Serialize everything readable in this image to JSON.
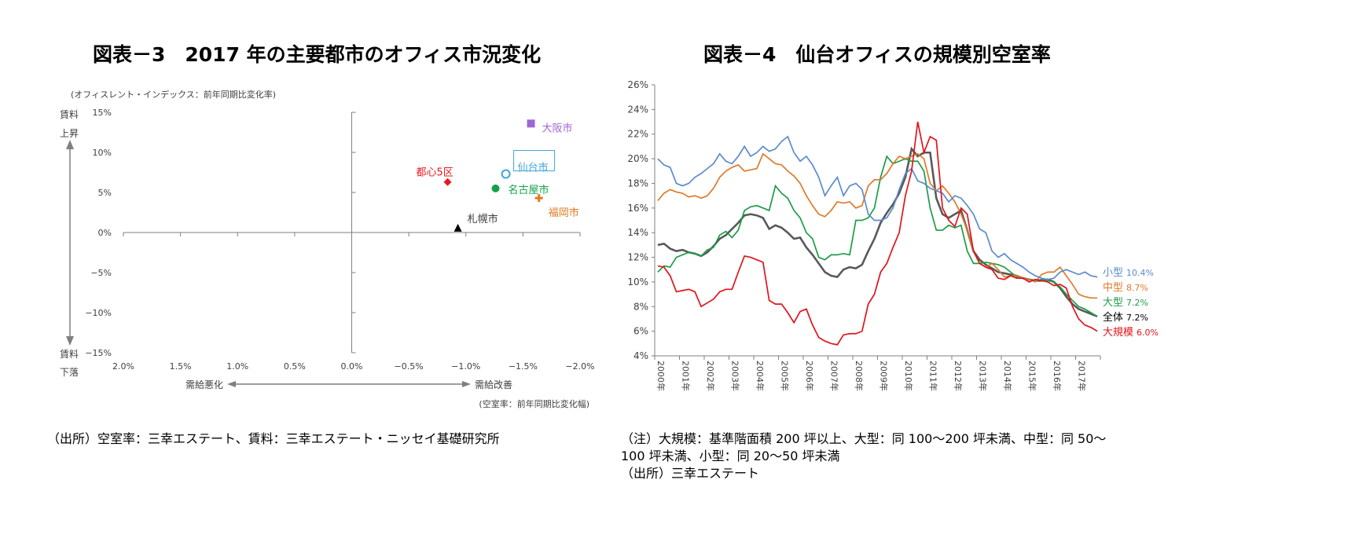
{
  "left": {
    "title": "図表－3　2017 年の主要都市のオフィス市況変化",
    "source": "（出所）空室率：三幸エステート、賃料：三幸エステート・ニッセイ基礎研究所"
  },
  "right": {
    "title": "図表－4　仙台オフィスの規模別空室率",
    "notes": [
      "（注）大規模：基準階面積 200 坪以上、大型：同 100～200 坪未満、中型：同 50～",
      "100 坪未満、小型：同 20～50 坪未満",
      "（出所）三幸エステート"
    ]
  },
  "chart_data": [
    {
      "type": "scatter",
      "ylabel": "(オフィスレント・インデックス：前年同期比変化率)",
      "xlabel": "(空室率：前年同期比変化幅)",
      "y_top_label": [
        "賃料",
        "上昇"
      ],
      "y_bottom_label": [
        "賃料",
        "下落"
      ],
      "x_left_label": "需給悪化",
      "x_right_label": "需給改善",
      "xlim": [
        2.0,
        -2.0
      ],
      "ylim": [
        -15,
        15
      ],
      "x_ticks": [
        "2.0%",
        "1.5%",
        "1.0%",
        "0.5%",
        "0.0%",
        "−0.5%",
        "−1.0%",
        "−1.5%",
        "−2.0%"
      ],
      "y_ticks": [
        "15%",
        "10%",
        "5%",
        "0%",
        "−5%",
        "−10%",
        "−15%"
      ],
      "points": [
        {
          "name": "大阪市",
          "x": -1.57,
          "y": 13.6,
          "marker": "square",
          "color": "#a066d3"
        },
        {
          "name": "仙台市",
          "x": -1.35,
          "y": 7.3,
          "marker": "circle-open",
          "color": "#41a5d8"
        },
        {
          "name": "都心5区",
          "x": -0.84,
          "y": 6.3,
          "marker": "diamond",
          "color": "#e8191e"
        },
        {
          "name": "名古屋市",
          "x": -1.26,
          "y": 5.5,
          "marker": "circle",
          "color": "#17a04a"
        },
        {
          "name": "福岡市",
          "x": -1.64,
          "y": 4.3,
          "marker": "plus",
          "color": "#e07a1f"
        },
        {
          "name": "札幌市",
          "x": -0.93,
          "y": 0.5,
          "marker": "triangle",
          "color": "#000000"
        }
      ]
    },
    {
      "type": "line",
      "ylim": [
        4,
        26
      ],
      "x_start": "2000",
      "x_end": "2017",
      "frequency": "quarterly",
      "y_ticks": [
        "26%",
        "24%",
        "22%",
        "20%",
        "18%",
        "16%",
        "14%",
        "12%",
        "10%",
        "8%",
        "6%",
        "4%"
      ],
      "x_ticks": [
        "2000年",
        "2001年",
        "2002年",
        "2003年",
        "2004年",
        "2005年",
        "2006年",
        "2007年",
        "2008年",
        "2009年",
        "2010年",
        "2011年",
        "2012年",
        "2013年",
        "2014年",
        "2015年",
        "2016年",
        "2017年"
      ],
      "series": [
        {
          "name": "小型",
          "end_label": "10.4%",
          "color": "#5b8ccb",
          "values": [
            20,
            19.5,
            19.3,
            18,
            17.8,
            18,
            18.5,
            18.8,
            19.2,
            19.6,
            20.4,
            19.8,
            19.6,
            20.2,
            21,
            20.2,
            20.5,
            21,
            20.6,
            20.8,
            21.4,
            21.8,
            20.5,
            19.8,
            20.2,
            19.5,
            18.5,
            17,
            17.8,
            18.5,
            17,
            17.8,
            18,
            17.5,
            15.5,
            15,
            15,
            15.2,
            16,
            17.5,
            18.8,
            19.2,
            18.2,
            18,
            17.6,
            17.4,
            17.2,
            16.5,
            17,
            16.8,
            16.2,
            15.5,
            14.3,
            14,
            12.5,
            12,
            12.3,
            11.8,
            11.5,
            11.2,
            10.8,
            10.5,
            10.3,
            10.2,
            10.3,
            10.8,
            11,
            10.8,
            10.6,
            10.8,
            10.5,
            10.4
          ]
        },
        {
          "name": "中型",
          "end_label": "8.7%",
          "color": "#e07a2a",
          "values": [
            16.6,
            17.2,
            17.5,
            17.3,
            17.2,
            16.9,
            17,
            16.8,
            17,
            17.6,
            18.5,
            19,
            19.3,
            19.5,
            19,
            19.1,
            19.2,
            20.4,
            20,
            19.6,
            19.5,
            19,
            18.6,
            18,
            17,
            16.2,
            15.5,
            15.3,
            15.8,
            16.5,
            16.4,
            16.5,
            16,
            16.2,
            17.8,
            18.3,
            18.3,
            18.8,
            19.6,
            20.2,
            20,
            20.2,
            20.4,
            20,
            18,
            17.4,
            17.8,
            17.2,
            16.5,
            15.5,
            14.2,
            12.5,
            11.5,
            11.2,
            11.5,
            11,
            10.4,
            10.5,
            10.5,
            10.3,
            10.2,
            10,
            10.6,
            10.8,
            10.8,
            11.2,
            10.5,
            9.8,
            9,
            8.8,
            8.7,
            8.7
          ]
        },
        {
          "name": "大型",
          "end_label": "7.2%",
          "color": "#1e9c48",
          "values": [
            10.8,
            11.3,
            11.2,
            12,
            12.2,
            12.4,
            12.3,
            12.1,
            12.6,
            12.8,
            13.8,
            14.1,
            13.6,
            14.2,
            15.8,
            16.1,
            16.2,
            16,
            15.8,
            17.8,
            17.2,
            16.8,
            15.8,
            15.2,
            14,
            13.5,
            12,
            11.8,
            12.2,
            12.2,
            12.3,
            12.2,
            15,
            15,
            15.2,
            16,
            18.5,
            20.2,
            19.6,
            19.8,
            20,
            19.8,
            19.8,
            19,
            16,
            14.2,
            14.2,
            14.6,
            14.4,
            14.6,
            12.5,
            11.5,
            11.5,
            11.6,
            11.5,
            11.4,
            11.2,
            10.8,
            10.4,
            10.3,
            10.2,
            10.1,
            10.2,
            10.1,
            10,
            9.6,
            9,
            8.5,
            8,
            7.8,
            7.5,
            7.2
          ]
        },
        {
          "name": "全体",
          "end_label": "7.2%",
          "color": "#595959",
          "values": [
            13,
            13.1,
            12.7,
            12.5,
            12.6,
            12.4,
            12.3,
            12.1,
            12.4,
            12.9,
            13.5,
            13.8,
            14.3,
            14.8,
            15.4,
            15.5,
            15.4,
            15.2,
            14.3,
            14.6,
            14.4,
            14,
            13.5,
            13.6,
            12.8,
            12.2,
            11.5,
            10.8,
            10.5,
            10.4,
            11,
            11.2,
            11.1,
            11.4,
            12.5,
            13.5,
            14.8,
            15.6,
            16.3,
            17.2,
            18.5,
            20.8,
            20.2,
            20.5,
            20.5,
            16.8,
            15.5,
            15.2,
            15.5,
            15.8,
            14.2,
            12.5,
            11.8,
            11.4,
            11.1,
            10.8,
            10.7,
            10.6,
            10.5,
            10.3,
            10.2,
            10.1,
            10.1,
            10.2,
            10,
            9.5,
            8.8,
            8.2,
            7.8,
            7.6,
            7.4,
            7.2
          ]
        },
        {
          "name": "大規模",
          "end_label": "6.0%",
          "color": "#e0141b",
          "values": [
            11.3,
            11.2,
            10.5,
            9.2,
            9.3,
            9.4,
            9.2,
            8,
            8.3,
            8.6,
            9.2,
            9.4,
            9.4,
            10.8,
            12.1,
            12,
            11.8,
            11.6,
            8.5,
            8.2,
            8.2,
            7.5,
            6.7,
            7.6,
            7.8,
            6.5,
            5.5,
            5.2,
            5,
            4.9,
            5.7,
            5.8,
            5.8,
            6,
            8.2,
            9,
            10.8,
            11.5,
            12.8,
            14,
            17,
            19,
            23,
            20.5,
            21.8,
            21.5,
            16,
            15,
            14.5,
            16,
            15.5,
            12.5,
            11.5,
            11.2,
            11,
            10.3,
            10.2,
            10.5,
            10.3,
            10.3,
            10,
            10.2,
            10.1,
            10,
            9.7,
            9.8,
            9.5,
            8,
            7,
            6.5,
            6.3,
            6
          ]
        }
      ]
    }
  ]
}
